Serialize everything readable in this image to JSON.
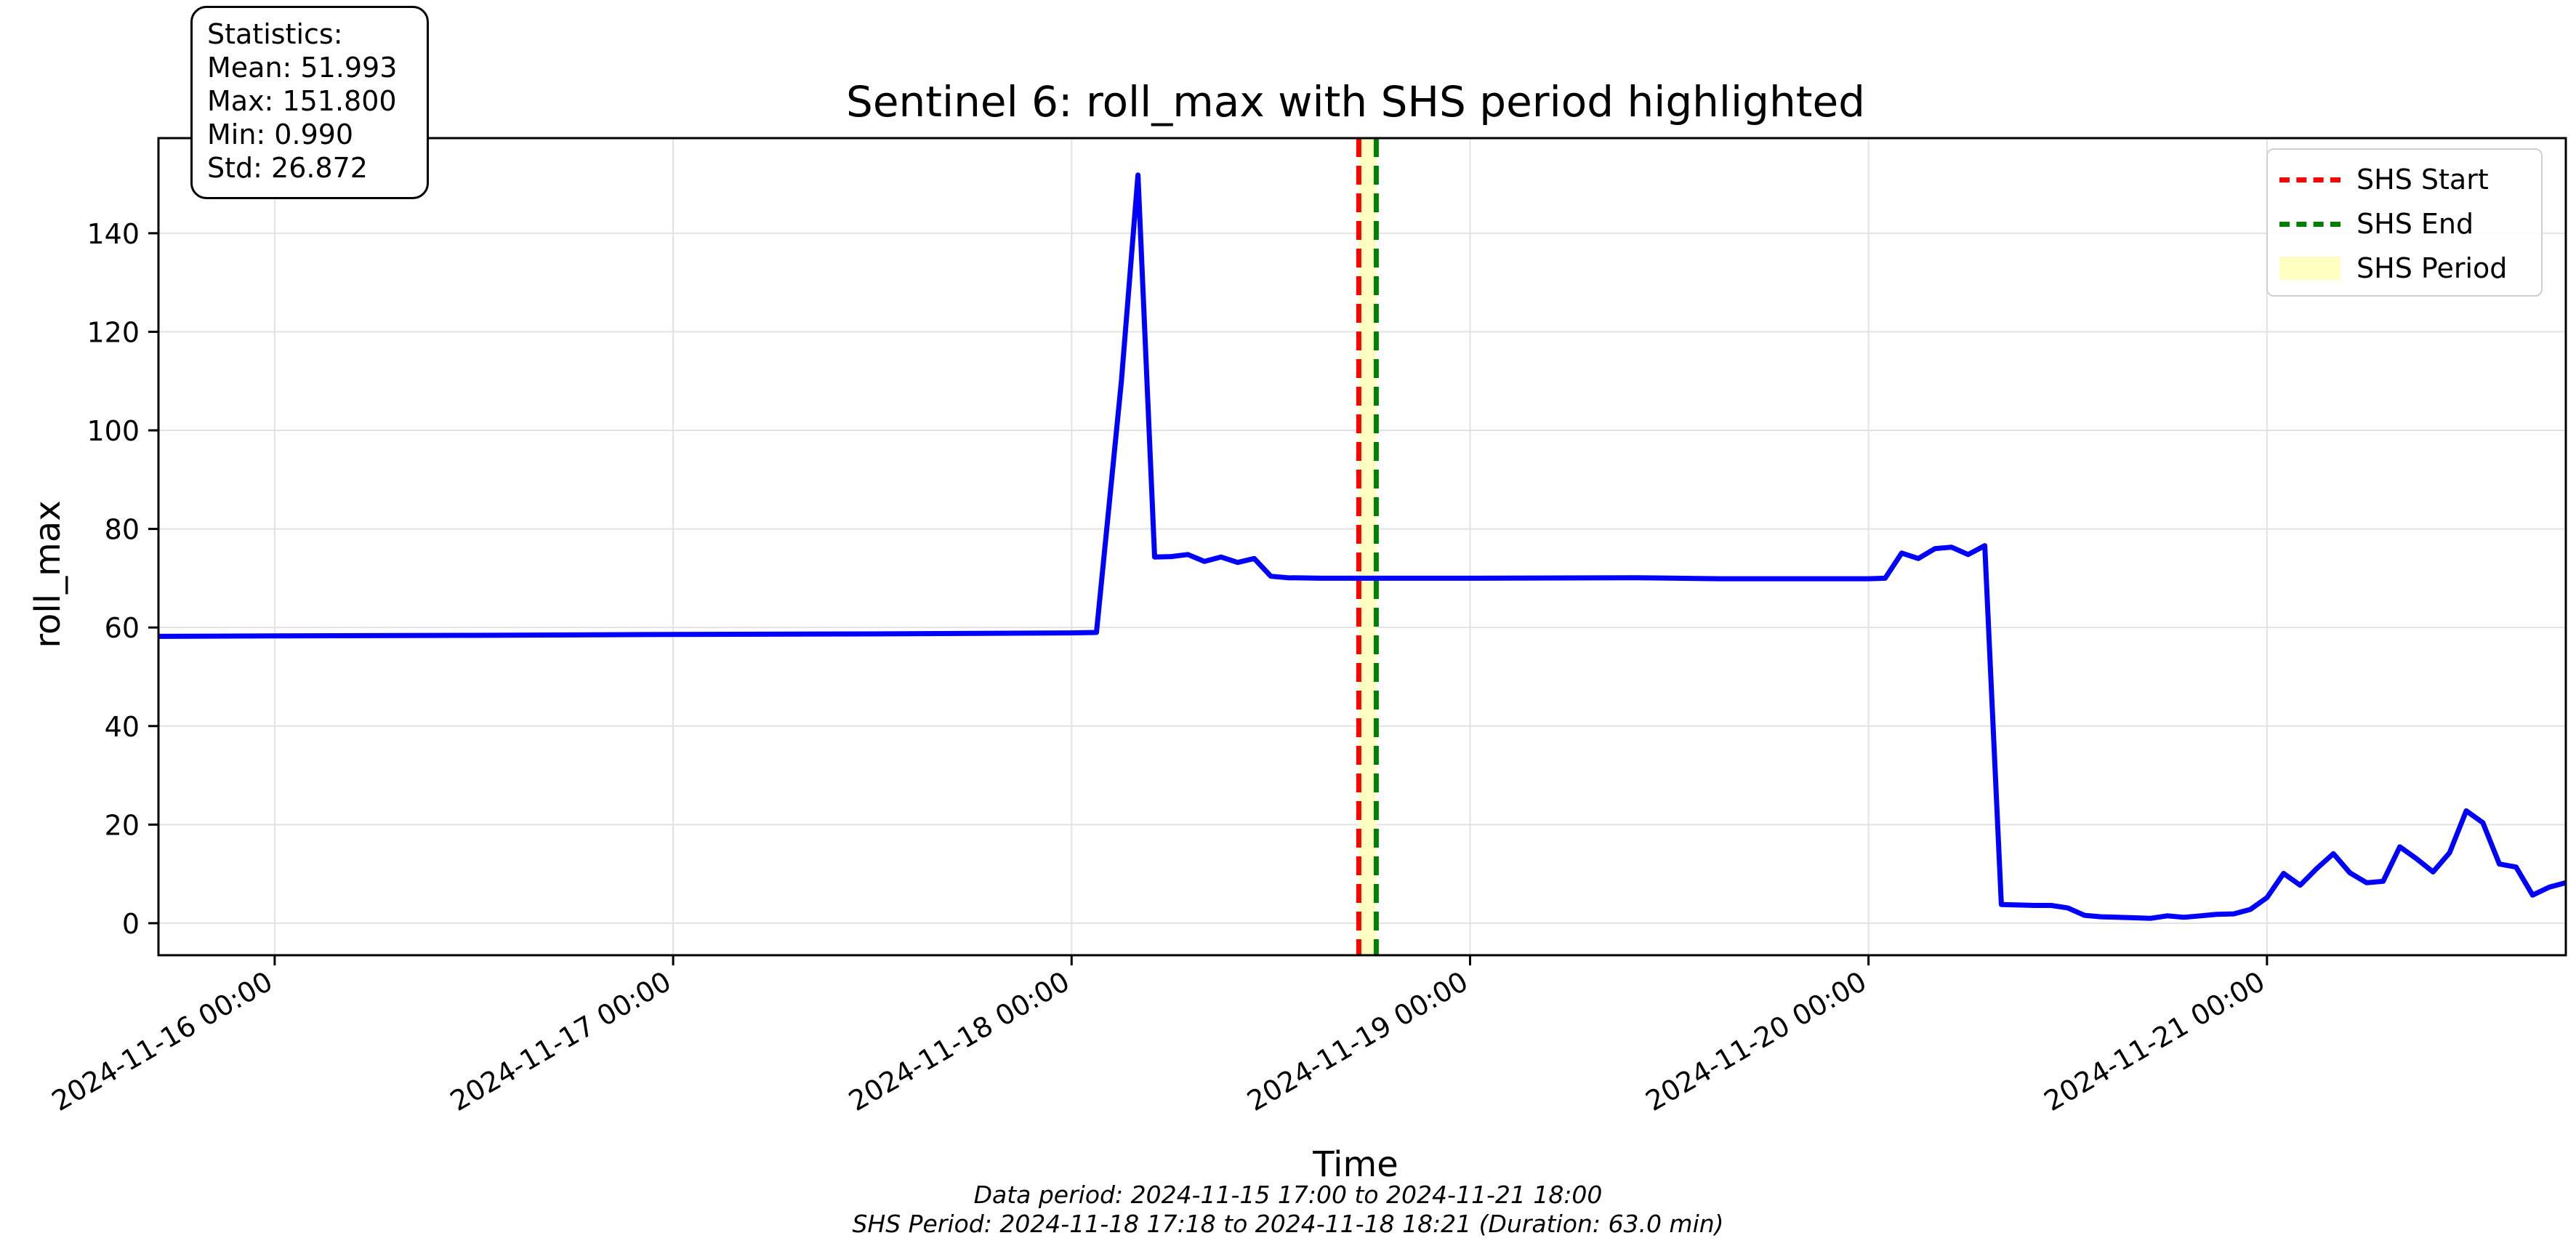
{
  "chart_data": {
    "type": "line",
    "title": "Sentinel 6: roll_max with SHS period highlighted",
    "xlabel": "Time",
    "ylabel": "roll_max",
    "x_start": "2024-11-15 17:00",
    "x_end": "2024-11-21 18:00",
    "ylim": [
      -6.5,
      159.3
    ],
    "yticks": [
      0,
      20,
      40,
      60,
      80,
      100,
      120,
      140
    ],
    "xticks": [
      "2024-11-16 00:00",
      "2024-11-17 00:00",
      "2024-11-18 00:00",
      "2024-11-19 00:00",
      "2024-11-20 00:00",
      "2024-11-21 00:00"
    ],
    "grid": true,
    "legend_position": "top-right",
    "series": [
      {
        "name": "roll_max",
        "color": "#0000ff",
        "points": [
          [
            "2024-11-15 17:00",
            58.2
          ],
          [
            "2024-11-16 00:00",
            58.3
          ],
          [
            "2024-11-16 12:00",
            58.4
          ],
          [
            "2024-11-17 00:00",
            58.6
          ],
          [
            "2024-11-17 12:00",
            58.7
          ],
          [
            "2024-11-18 00:00",
            58.9
          ],
          [
            "2024-11-18 01:30",
            59.0
          ],
          [
            "2024-11-18 03:00",
            110.0
          ],
          [
            "2024-11-18 04:00",
            151.8
          ],
          [
            "2024-11-18 05:00",
            74.3
          ],
          [
            "2024-11-18 06:00",
            74.4
          ],
          [
            "2024-11-18 07:00",
            74.8
          ],
          [
            "2024-11-18 08:00",
            73.4
          ],
          [
            "2024-11-18 09:00",
            74.3
          ],
          [
            "2024-11-18 10:00",
            73.2
          ],
          [
            "2024-11-18 11:00",
            74.0
          ],
          [
            "2024-11-18 12:00",
            70.4
          ],
          [
            "2024-11-18 13:00",
            70.1
          ],
          [
            "2024-11-18 15:00",
            70.0
          ],
          [
            "2024-11-18 18:00",
            70.0
          ],
          [
            "2024-11-19 00:00",
            70.0
          ],
          [
            "2024-11-19 10:00",
            70.1
          ],
          [
            "2024-11-19 15:00",
            69.9
          ],
          [
            "2024-11-20 00:00",
            69.9
          ],
          [
            "2024-11-20 01:00",
            70.0
          ],
          [
            "2024-11-20 02:00",
            75.1
          ],
          [
            "2024-11-20 03:00",
            74.0
          ],
          [
            "2024-11-20 04:00",
            76.0
          ],
          [
            "2024-11-20 05:00",
            76.3
          ],
          [
            "2024-11-20 06:00",
            74.8
          ],
          [
            "2024-11-20 07:00",
            76.6
          ],
          [
            "2024-11-20 08:00",
            3.8
          ],
          [
            "2024-11-20 09:00",
            3.7
          ],
          [
            "2024-11-20 10:00",
            3.6
          ],
          [
            "2024-11-20 11:00",
            3.6
          ],
          [
            "2024-11-20 12:00",
            3.1
          ],
          [
            "2024-11-20 13:00",
            1.6
          ],
          [
            "2024-11-20 14:00",
            1.3
          ],
          [
            "2024-11-20 15:00",
            1.2
          ],
          [
            "2024-11-20 16:00",
            1.1
          ],
          [
            "2024-11-20 17:00",
            1.0
          ],
          [
            "2024-11-20 18:00",
            1.5
          ],
          [
            "2024-11-20 19:00",
            1.2
          ],
          [
            "2024-11-20 20:00",
            1.5
          ],
          [
            "2024-11-20 21:00",
            1.8
          ],
          [
            "2024-11-20 22:00",
            1.9
          ],
          [
            "2024-11-20 23:00",
            2.8
          ],
          [
            "2024-11-21 00:00",
            5.2
          ],
          [
            "2024-11-21 01:00",
            10.1
          ],
          [
            "2024-11-21 02:00",
            7.7
          ],
          [
            "2024-11-21 03:00",
            11.1
          ],
          [
            "2024-11-21 04:00",
            14.1
          ],
          [
            "2024-11-21 05:00",
            10.2
          ],
          [
            "2024-11-21 06:00",
            8.2
          ],
          [
            "2024-11-21 07:00",
            8.5
          ],
          [
            "2024-11-21 08:00",
            15.5
          ],
          [
            "2024-11-21 09:00",
            13.1
          ],
          [
            "2024-11-21 10:00",
            10.4
          ],
          [
            "2024-11-21 11:00",
            14.3
          ],
          [
            "2024-11-21 12:00",
            22.8
          ],
          [
            "2024-11-21 13:00",
            20.4
          ],
          [
            "2024-11-21 14:00",
            12.0
          ],
          [
            "2024-11-21 15:00",
            11.4
          ],
          [
            "2024-11-21 16:00",
            5.7
          ],
          [
            "2024-11-21 17:00",
            7.3
          ],
          [
            "2024-11-21 18:00",
            8.2
          ]
        ]
      }
    ],
    "shs": {
      "start": "2024-11-18 17:18",
      "end": "2024-11-18 18:21",
      "start_color": "#ff0000",
      "end_color": "#008000",
      "fill_color": "#ffffc2"
    },
    "legend": [
      {
        "label": "SHS Start",
        "kind": "dashed-line",
        "color": "#ff0000"
      },
      {
        "label": "SHS End",
        "kind": "dashed-line",
        "color": "#008000"
      },
      {
        "label": "SHS Period",
        "kind": "fill",
        "color": "#ffffc2"
      }
    ]
  },
  "stats": {
    "heading": "Statistics:",
    "mean": "Mean: 51.993",
    "max": "Max: 151.800",
    "min": "Min: 0.990",
    "std": "Std: 26.872"
  },
  "footer": {
    "data_period": "Data period: 2024-11-15 17:00 to 2024-11-21 18:00",
    "shs_period": "SHS Period: 2024-11-18 17:18 to 2024-11-18 18:21 (Duration: 63.0 min)"
  }
}
